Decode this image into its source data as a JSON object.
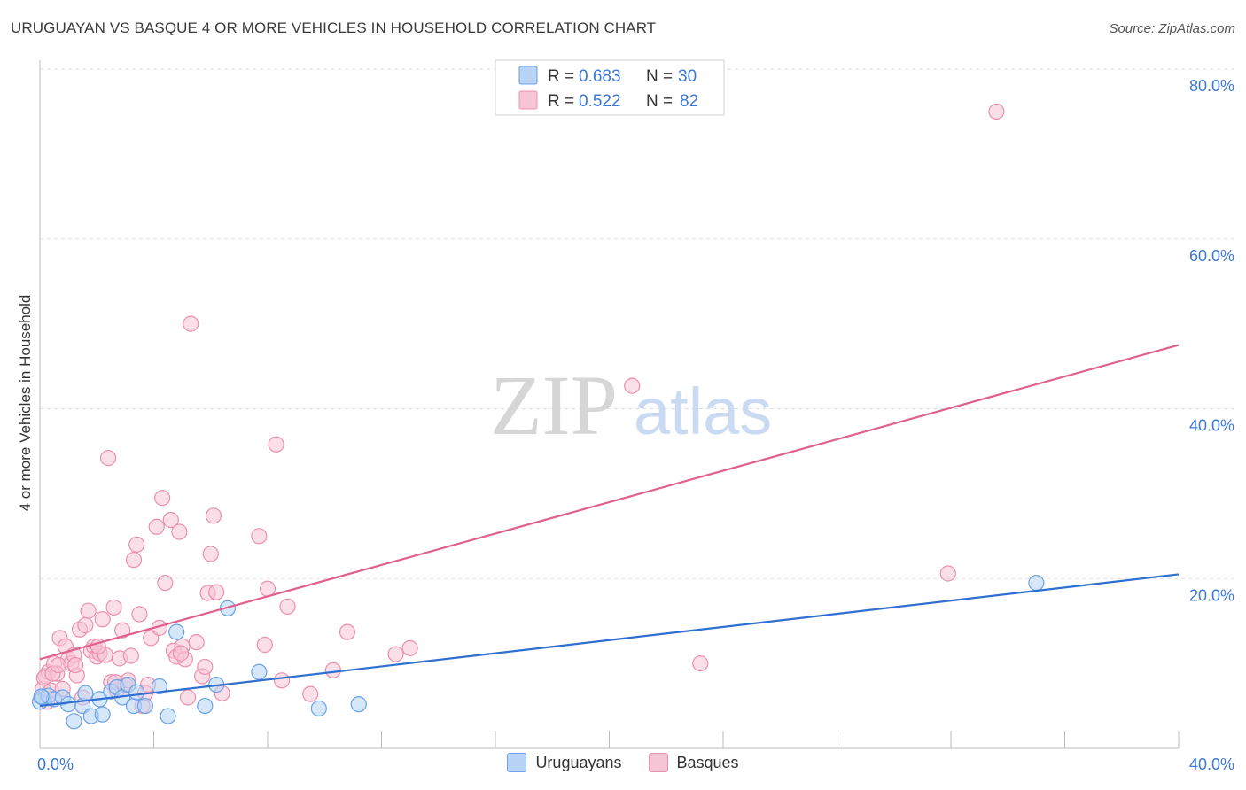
{
  "title": "URUGUAYAN VS BASQUE 4 OR MORE VEHICLES IN HOUSEHOLD CORRELATION CHART",
  "source": "Source: ZipAtlas.com",
  "watermark": {
    "zip": "ZIP",
    "atlas": "atlas"
  },
  "colors": {
    "blue": "#6aa2e8",
    "blue_fill": "#b7d3f6",
    "blue_line": "#2f6fd1",
    "pink": "#ec8fae",
    "pink_fill": "#f7c4d5",
    "pink_line": "#e06090",
    "axis_text": "#3b78d8",
    "grid": "#dddddd"
  },
  "legend": {
    "rows": [
      {
        "r_label": "R =",
        "r_value": "0.683",
        "n_label": "N =",
        "n_value": "30"
      },
      {
        "r_label": "R =",
        "r_value": "0.522",
        "n_label": "N =",
        "n_value": "82"
      }
    ]
  },
  "bottom_legend": {
    "series1": "Uruguayans",
    "series2": "Basques"
  },
  "chart_data": {
    "type": "scatter",
    "title": "URUGUAYAN VS BASQUE 4 OR MORE VEHICLES IN HOUSEHOLD CORRELATION CHART",
    "xlabel": "",
    "ylabel": "4 or more Vehicles in Household",
    "xlim": [
      0,
      40
    ],
    "ylim": [
      0,
      80
    ],
    "x_tick_labels": [
      "0.0%",
      "40.0%"
    ],
    "y_ticks": [
      20,
      40,
      60,
      80
    ],
    "y_tick_labels": [
      "20.0%",
      "40.0%",
      "60.0%",
      "80.0%"
    ],
    "series": [
      {
        "name": "Uruguayans",
        "trend": {
          "x": [
            0,
            40
          ],
          "y": [
            5.0,
            20.5
          ]
        },
        "points": [
          [
            0.0,
            5.5
          ],
          [
            0.1,
            6.0
          ],
          [
            0.3,
            6.2
          ],
          [
            0.5,
            5.8
          ],
          [
            0.8,
            6.0
          ],
          [
            1.0,
            5.2
          ],
          [
            1.2,
            3.2
          ],
          [
            1.5,
            5.0
          ],
          [
            1.6,
            6.5
          ],
          [
            1.8,
            3.8
          ],
          [
            2.1,
            5.8
          ],
          [
            2.2,
            4.0
          ],
          [
            2.5,
            6.7
          ],
          [
            2.7,
            7.2
          ],
          [
            2.9,
            6.0
          ],
          [
            3.1,
            7.5
          ],
          [
            3.3,
            5.0
          ],
          [
            3.4,
            6.6
          ],
          [
            3.7,
            5.0
          ],
          [
            4.2,
            7.3
          ],
          [
            4.5,
            3.8
          ],
          [
            4.8,
            13.7
          ],
          [
            5.8,
            5.0
          ],
          [
            6.2,
            7.5
          ],
          [
            6.6,
            16.5
          ],
          [
            7.7,
            9.0
          ],
          [
            9.8,
            4.7
          ],
          [
            11.2,
            5.2
          ],
          [
            35.0,
            19.5
          ],
          [
            0.05,
            6.1
          ]
        ]
      },
      {
        "name": "Basques",
        "trend": {
          "x": [
            0,
            40
          ],
          "y": [
            10.5,
            47.5
          ]
        },
        "points": [
          [
            0.1,
            7.0
          ],
          [
            0.2,
            8.5
          ],
          [
            0.3,
            9.0
          ],
          [
            0.4,
            6.8
          ],
          [
            0.5,
            10.0
          ],
          [
            0.6,
            8.8
          ],
          [
            0.7,
            13.0
          ],
          [
            0.8,
            7.0
          ],
          [
            0.9,
            12.0
          ],
          [
            1.0,
            10.5
          ],
          [
            1.1,
            10.0
          ],
          [
            1.2,
            11.0
          ],
          [
            1.3,
            8.6
          ],
          [
            1.4,
            14.0
          ],
          [
            1.5,
            6.0
          ],
          [
            1.6,
            14.5
          ],
          [
            1.7,
            16.2
          ],
          [
            1.8,
            11.5
          ],
          [
            1.9,
            12.0
          ],
          [
            2.0,
            10.8
          ],
          [
            2.1,
            11.2
          ],
          [
            2.2,
            15.2
          ],
          [
            2.3,
            11.0
          ],
          [
            2.4,
            34.2
          ],
          [
            2.5,
            7.8
          ],
          [
            2.6,
            16.6
          ],
          [
            2.7,
            6.8
          ],
          [
            2.8,
            10.6
          ],
          [
            2.9,
            13.9
          ],
          [
            3.0,
            7.5
          ],
          [
            3.1,
            8.0
          ],
          [
            3.2,
            10.9
          ],
          [
            3.3,
            22.2
          ],
          [
            3.4,
            24.0
          ],
          [
            3.5,
            15.8
          ],
          [
            3.6,
            5.0
          ],
          [
            3.7,
            6.5
          ],
          [
            3.8,
            7.5
          ],
          [
            3.9,
            13.0
          ],
          [
            4.1,
            26.1
          ],
          [
            4.2,
            14.2
          ],
          [
            4.3,
            29.5
          ],
          [
            4.4,
            19.5
          ],
          [
            4.6,
            26.9
          ],
          [
            4.7,
            11.5
          ],
          [
            4.8,
            10.8
          ],
          [
            4.9,
            25.5
          ],
          [
            5.0,
            12.0
          ],
          [
            5.1,
            10.5
          ],
          [
            5.2,
            6.0
          ],
          [
            5.3,
            50.0
          ],
          [
            5.5,
            12.5
          ],
          [
            5.7,
            8.5
          ],
          [
            5.8,
            9.6
          ],
          [
            5.9,
            18.3
          ],
          [
            6.0,
            22.9
          ],
          [
            6.1,
            27.4
          ],
          [
            6.2,
            18.4
          ],
          [
            6.4,
            6.5
          ],
          [
            7.7,
            25.0
          ],
          [
            7.9,
            12.2
          ],
          [
            8.0,
            18.8
          ],
          [
            8.3,
            35.8
          ],
          [
            8.5,
            8.0
          ],
          [
            8.7,
            16.7
          ],
          [
            9.5,
            6.4
          ],
          [
            10.3,
            9.2
          ],
          [
            10.8,
            13.7
          ],
          [
            12.5,
            11.1
          ],
          [
            13.0,
            11.8
          ],
          [
            20.8,
            42.7
          ],
          [
            23.2,
            10.0
          ],
          [
            33.6,
            75.0
          ],
          [
            31.9,
            20.6
          ],
          [
            0.15,
            8.3
          ],
          [
            0.45,
            8.8
          ],
          [
            0.65,
            9.8
          ],
          [
            0.25,
            5.5
          ],
          [
            1.25,
            9.8
          ],
          [
            2.05,
            12.0
          ],
          [
            2.65,
            7.8
          ],
          [
            4.95,
            11.2
          ]
        ]
      }
    ]
  }
}
